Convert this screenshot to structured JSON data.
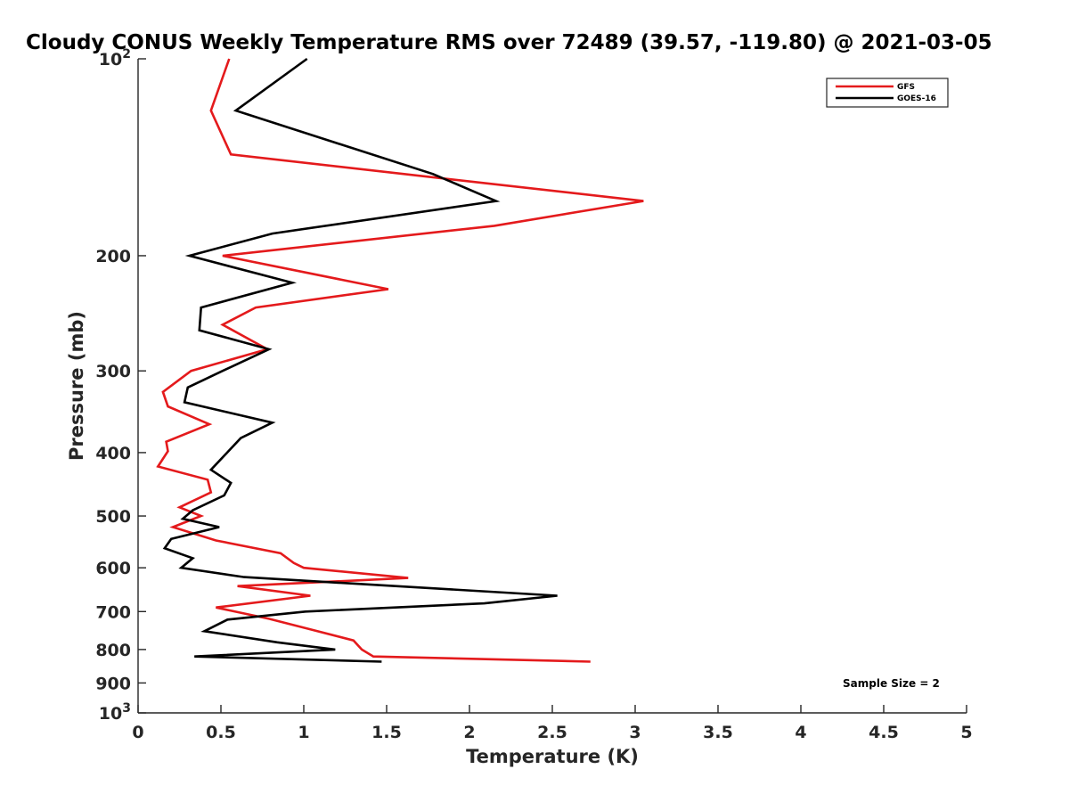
{
  "chart_data": {
    "type": "line",
    "title": "Cloudy CONUS Weekly Temperature RMS over 72489 (39.57, -119.80) @ 2021-03-05",
    "xlabel": "Temperature (K)",
    "ylabel": "Pressure (mb)",
    "xlim": [
      0,
      5
    ],
    "ylim": [
      100,
      1000
    ],
    "y_scale": "log",
    "y_reversed": true,
    "grid": false,
    "legend_position": "top-right",
    "x_ticks": [
      0,
      0.5,
      1,
      1.5,
      2,
      2.5,
      3,
      3.5,
      4,
      4.5,
      5
    ],
    "x_tick_labels": [
      "0",
      "0.5",
      "1",
      "1.5",
      "2",
      "2.5",
      "3",
      "3.5",
      "4",
      "4.5",
      "5"
    ],
    "y_ticks": [
      100,
      200,
      300,
      400,
      500,
      600,
      700,
      800,
      900,
      1000
    ],
    "y_tick_labels": [
      {
        "base": "10",
        "exp": "2"
      },
      {
        "base": "200"
      },
      {
        "base": "300"
      },
      {
        "base": "400"
      },
      {
        "base": "500"
      },
      {
        "base": "600"
      },
      {
        "base": "700"
      },
      {
        "base": "800"
      },
      {
        "base": "900"
      },
      {
        "base": "10",
        "exp": "3"
      }
    ],
    "annotation": "Sample Size = 2",
    "series": [
      {
        "name": "GFS",
        "color": "#e41a1c",
        "points": [
          [
            0.55,
            100
          ],
          [
            0.44,
            120
          ],
          [
            0.56,
            140
          ],
          [
            3.05,
            165
          ],
          [
            2.15,
            180
          ],
          [
            0.51,
            200
          ],
          [
            1.51,
            225
          ],
          [
            0.71,
            240
          ],
          [
            0.51,
            255
          ],
          [
            0.78,
            278
          ],
          [
            0.32,
            300
          ],
          [
            0.15,
            323
          ],
          [
            0.18,
            340
          ],
          [
            0.43,
            362
          ],
          [
            0.17,
            385
          ],
          [
            0.18,
            398
          ],
          [
            0.12,
            420
          ],
          [
            0.42,
            440
          ],
          [
            0.44,
            460
          ],
          [
            0.25,
            485
          ],
          [
            0.38,
            500
          ],
          [
            0.21,
            520
          ],
          [
            0.47,
            545
          ],
          [
            0.86,
            570
          ],
          [
            0.94,
            590
          ],
          [
            1.0,
            600
          ],
          [
            1.63,
            622
          ],
          [
            0.6,
            640
          ],
          [
            1.04,
            662
          ],
          [
            0.47,
            690
          ],
          [
            0.79,
            718
          ],
          [
            1.04,
            745
          ],
          [
            1.3,
            775
          ],
          [
            1.35,
            800
          ],
          [
            1.42,
            820
          ],
          [
            2.73,
            835
          ]
        ]
      },
      {
        "name": "GOES-16",
        "color": "#000000",
        "points": [
          [
            1.02,
            100
          ],
          [
            0.59,
            120
          ],
          [
            1.78,
            150
          ],
          [
            2.16,
            165
          ],
          [
            0.81,
            185
          ],
          [
            0.31,
            200
          ],
          [
            0.93,
            220
          ],
          [
            0.38,
            240
          ],
          [
            0.37,
            260
          ],
          [
            0.79,
            278
          ],
          [
            0.51,
            300
          ],
          [
            0.3,
            318
          ],
          [
            0.28,
            335
          ],
          [
            0.81,
            360
          ],
          [
            0.62,
            380
          ],
          [
            0.44,
            425
          ],
          [
            0.56,
            445
          ],
          [
            0.52,
            465
          ],
          [
            0.33,
            490
          ],
          [
            0.27,
            505
          ],
          [
            0.49,
            520
          ],
          [
            0.2,
            542
          ],
          [
            0.16,
            560
          ],
          [
            0.33,
            580
          ],
          [
            0.26,
            600
          ],
          [
            0.64,
            620
          ],
          [
            2.53,
            662
          ],
          [
            2.09,
            680
          ],
          [
            1.01,
            700
          ],
          [
            0.54,
            720
          ],
          [
            0.4,
            750
          ],
          [
            0.84,
            780
          ],
          [
            1.19,
            800
          ],
          [
            0.34,
            820
          ],
          [
            1.47,
            835
          ]
        ]
      }
    ]
  }
}
